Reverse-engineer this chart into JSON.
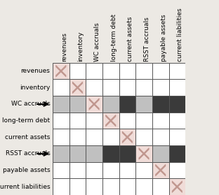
{
  "labels": [
    "revenues",
    "inventory",
    "WC accruals",
    "long-term debt",
    "current assets",
    "RSST accruals",
    "payable assets",
    "current liabilities"
  ],
  "col_labels": [
    "revenues",
    "inventory",
    "WC accruals",
    "long-term debt",
    "current assets",
    "RSST accruals",
    "payable assets",
    "current liabilities"
  ],
  "arrow_rows": [
    2,
    5
  ],
  "cell_colors": [
    [
      "diag",
      "white",
      "white",
      "white",
      "white",
      "white",
      "white",
      "white"
    ],
    [
      "white",
      "diag",
      "white",
      "white",
      "white",
      "white",
      "white",
      "white"
    ],
    [
      "light",
      "light",
      "diag",
      "light",
      "dark",
      "light",
      "dark",
      "dark"
    ],
    [
      "white",
      "white",
      "white",
      "diag",
      "white",
      "white",
      "white",
      "white"
    ],
    [
      "white",
      "white",
      "white",
      "white",
      "diag",
      "white",
      "white",
      "white"
    ],
    [
      "light",
      "light",
      "light",
      "dark",
      "dark",
      "diag",
      "light",
      "dark"
    ],
    [
      "white",
      "white",
      "white",
      "white",
      "white",
      "white",
      "diag",
      "white"
    ],
    [
      "white",
      "white",
      "white",
      "white",
      "white",
      "white",
      "white",
      "diag"
    ]
  ],
  "color_map": {
    "white": "#ffffff",
    "light": "#c0c0c0",
    "dark": "#3a3a3a",
    "diag": "#f0dcd8"
  },
  "x_color": "#c0968e",
  "grid_color": "#555555",
  "arrow_color": "#000000",
  "bg_color": "#ece9e4",
  "label_fontsize": 6.5,
  "col_label_fontsize": 6.5,
  "figsize": [
    3.12,
    2.79
  ],
  "dpi": 100
}
